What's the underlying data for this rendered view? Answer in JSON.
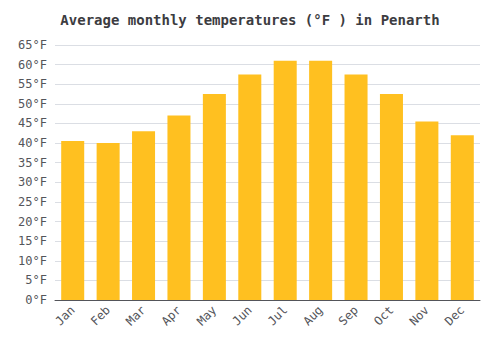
{
  "chart_data": {
    "type": "bar",
    "title": "Average monthly temperatures (°F ) in Penarth",
    "categories": [
      "Jan",
      "Feb",
      "Mar",
      "Apr",
      "May",
      "Jun",
      "Jul",
      "Aug",
      "Sep",
      "Oct",
      "Nov",
      "Dec"
    ],
    "values": [
      40.5,
      40.0,
      43.0,
      47.0,
      52.5,
      57.5,
      61.0,
      61.0,
      57.5,
      52.5,
      45.5,
      42.0
    ],
    "color": "#FFC020",
    "ylim": [
      0,
      65
    ],
    "yticks": [
      {
        "value": 0,
        "label": "0°F"
      },
      {
        "value": 5,
        "label": "5°F"
      },
      {
        "value": 10,
        "label": "10°F"
      },
      {
        "value": 15,
        "label": "15°F"
      },
      {
        "value": 20,
        "label": "20°F"
      },
      {
        "value": 25,
        "label": "25°F"
      },
      {
        "value": 30,
        "label": "30°F"
      },
      {
        "value": 35,
        "label": "35°F"
      },
      {
        "value": 40,
        "label": "40°F"
      },
      {
        "value": 45,
        "label": "45°F"
      },
      {
        "value": 50,
        "label": "50°F"
      },
      {
        "value": 55,
        "label": "55°F"
      },
      {
        "value": 60,
        "label": "60°F"
      },
      {
        "value": 65,
        "label": "65°F"
      }
    ],
    "grid": true
  }
}
